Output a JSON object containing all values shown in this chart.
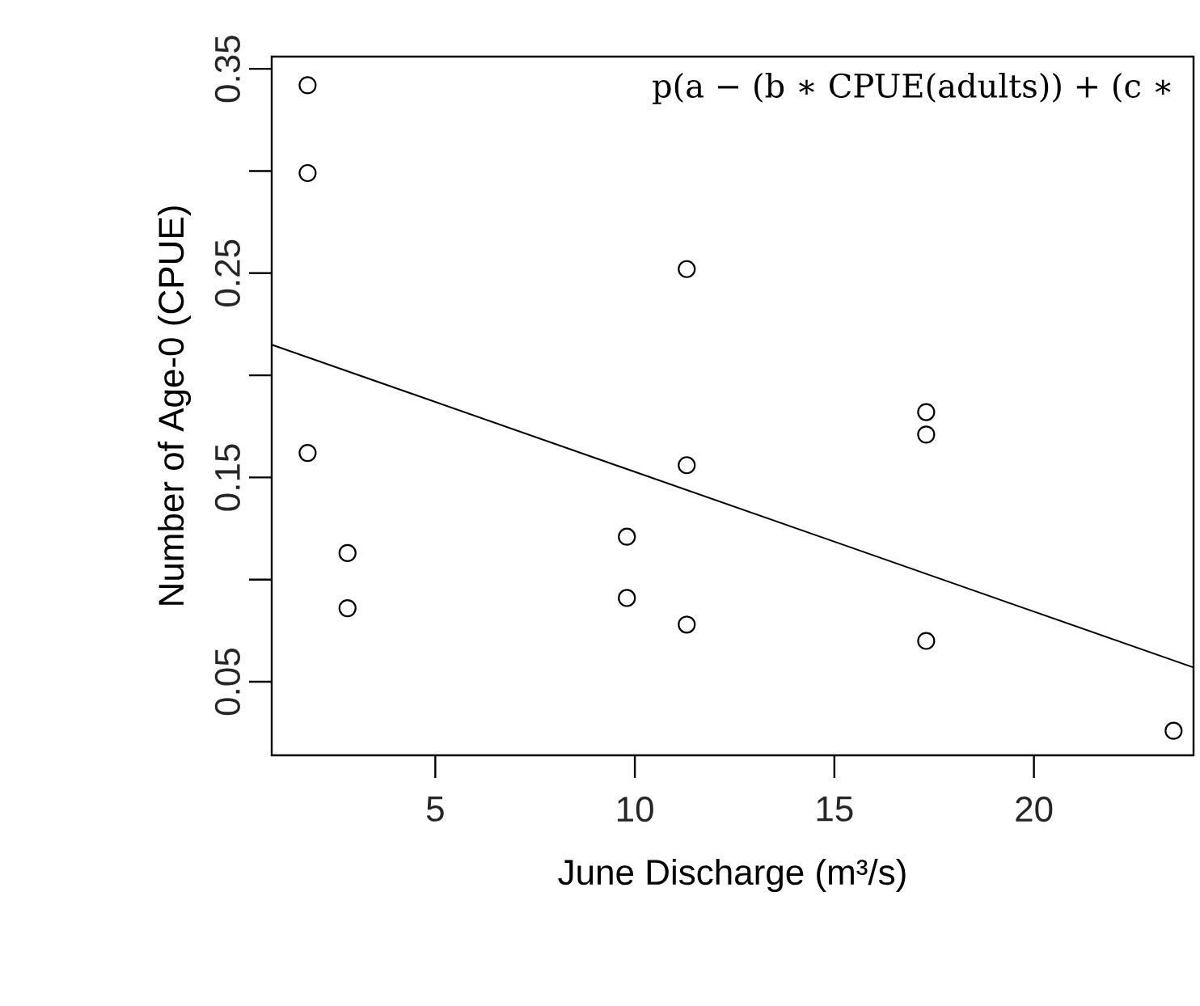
{
  "chart_data": {
    "type": "scatter",
    "xlabel": "June Discharge (m³/s)",
    "ylabel": "Number of Age-0 (CPUE)",
    "annotations": [
      "p(a − (b ∗ CPUE(adults)) + (c ∗"
    ],
    "xlim": [
      0.9,
      24
    ],
    "ylim": [
      0.014,
      0.356
    ],
    "xticks": [
      5,
      10,
      15,
      20
    ],
    "yticks": [
      0.05,
      {
        "value": 0.1,
        "label": null
      },
      0.15,
      {
        "value": 0.2,
        "label": null
      },
      0.25,
      {
        "value": 0.3,
        "label": null
      },
      0.35
    ],
    "grid": false,
    "series": [
      {
        "color": "#000000",
        "marker": "circle",
        "x": [
          1.8,
          1.8,
          1.8,
          2.8,
          2.8,
          9.8,
          9.8,
          11.3,
          11.3,
          11.3,
          17.3,
          17.3,
          17.3,
          23.5
        ],
        "values": [
          0.342,
          0.299,
          0.162,
          0.113,
          0.086,
          0.121,
          0.091,
          0.252,
          0.156,
          0.078,
          0.182,
          0.171,
          0.07,
          0.026
        ]
      },
      {
        "type": "line",
        "color": "#000000",
        "marker": "none",
        "line_style": "solid",
        "x": [
          0.9,
          24
        ],
        "values": [
          0.215,
          0.057
        ]
      }
    ]
  }
}
